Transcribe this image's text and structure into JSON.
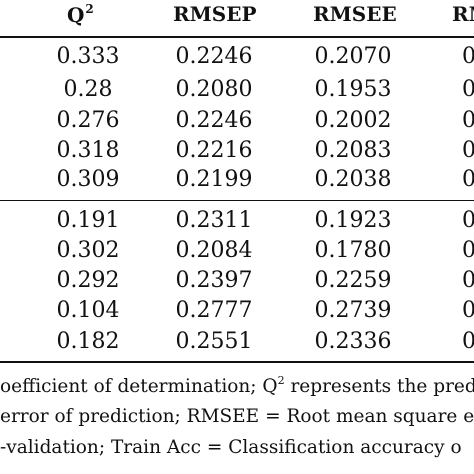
{
  "header": {
    "q2_label": "Q",
    "q2_sup": "2",
    "rmsep_label": "RMSEP",
    "rmsee_label": "RMSEE",
    "clipped_label": "RM"
  },
  "rows": [
    {
      "q2": "0.333",
      "rmsep": "0.2246",
      "rmsee": "0.2070",
      "next": "0"
    },
    {
      "q2": "0.28",
      "rmsep": "0.2080",
      "rmsee": "0.1953",
      "next": "0"
    },
    {
      "q2": "0.276",
      "rmsep": "0.2246",
      "rmsee": "0.2002",
      "next": "0"
    },
    {
      "q2": "0.318",
      "rmsep": "0.2216",
      "rmsee": "0.2083",
      "next": "0"
    },
    {
      "q2": "0.309",
      "rmsep": "0.2199",
      "rmsee": "0.2038",
      "next": "0"
    },
    {
      "q2": "0.191",
      "rmsep": "0.2311",
      "rmsee": "0.1923",
      "next": "0"
    },
    {
      "q2": "0.302",
      "rmsep": "0.2084",
      "rmsee": "0.1780",
      "next": "0"
    },
    {
      "q2": "0.292",
      "rmsep": "0.2397",
      "rmsee": "0.2259",
      "next": "0"
    },
    {
      "q2": "0.104",
      "rmsep": "0.2777",
      "rmsee": "0.2739",
      "next": "0"
    },
    {
      "q2": "0.182",
      "rmsep": "0.2551",
      "rmsee": "0.2336",
      "next": "0"
    }
  ],
  "footnote": {
    "line1_a": "oefficient of determination; Q",
    "line1_sup": "2",
    "line1_b": " represents the pred",
    "line2": "error of prediction; RMSEE = Root mean square e",
    "line3": "-validation; Train Acc = Classification accuracy o"
  }
}
